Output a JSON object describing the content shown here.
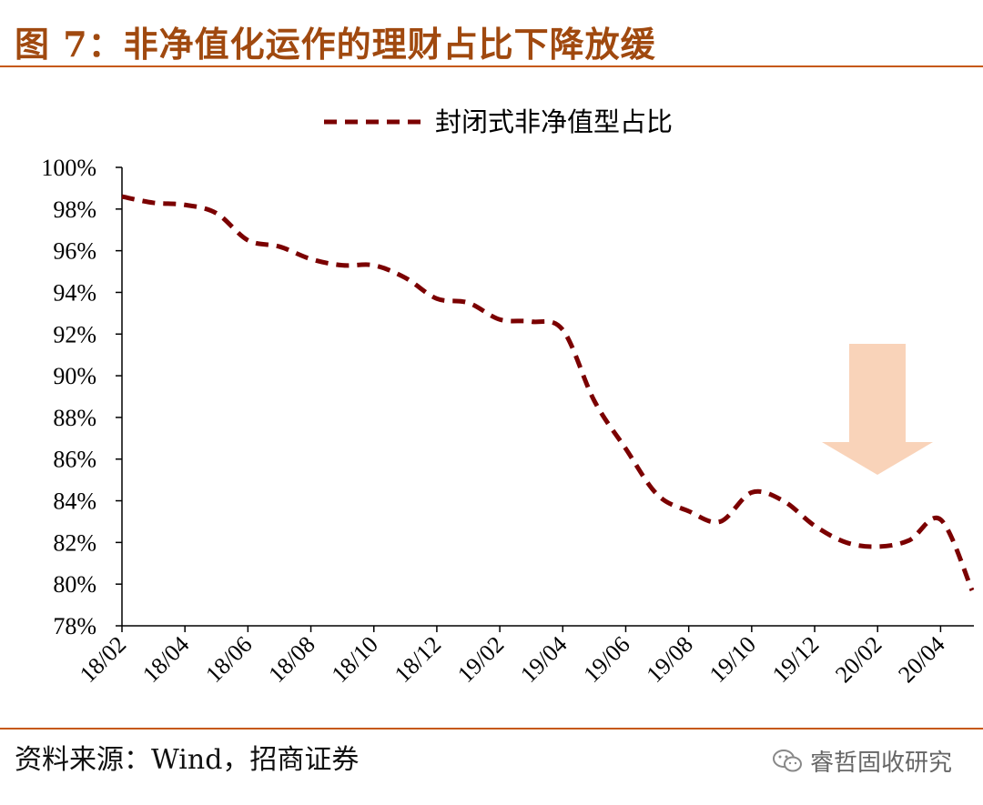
{
  "header": {
    "title": "图 7：非净值化运作的理财占比下降放缓"
  },
  "footer": {
    "source": "资料来源：Wind，招商证券",
    "watermark": "睿哲固收研究"
  },
  "colors": {
    "line": "#7b0000",
    "accent": "#c65911",
    "arrow": "#f8cbad"
  },
  "icons": {
    "watermark": "wechat-icon",
    "annotation": "down-arrow-icon"
  },
  "chart_data": {
    "type": "line",
    "legend": "top-center",
    "grid": false,
    "x": [
      "18/02",
      "18/03",
      "18/04",
      "18/05",
      "18/06",
      "18/07",
      "18/08",
      "18/09",
      "18/10",
      "18/11",
      "18/12",
      "19/01",
      "19/02",
      "19/03",
      "19/04",
      "19/05",
      "19/06",
      "19/07",
      "19/08",
      "19/09",
      "19/10",
      "19/11",
      "19/12",
      "20/01",
      "20/02",
      "20/03",
      "20/04",
      "20/05"
    ],
    "xticks": [
      "18/02",
      "18/04",
      "18/06",
      "18/08",
      "18/10",
      "18/12",
      "19/02",
      "19/04",
      "19/06",
      "19/08",
      "19/10",
      "19/12",
      "20/02",
      "20/04"
    ],
    "ylim": [
      78,
      100
    ],
    "yticks": [
      78,
      80,
      82,
      84,
      86,
      88,
      90,
      92,
      94,
      96,
      98,
      100
    ],
    "ytick_labels": [
      "78%",
      "80%",
      "82%",
      "84%",
      "86%",
      "88%",
      "90%",
      "92%",
      "94%",
      "96%",
      "98%",
      "100%"
    ],
    "series": [
      {
        "name": "封闭式非净值型占比",
        "values": [
          98.6,
          98.3,
          98.2,
          97.8,
          96.5,
          96.2,
          95.6,
          95.3,
          95.3,
          94.7,
          93.7,
          93.5,
          92.7,
          92.6,
          92.2,
          88.8,
          86.5,
          84.3,
          83.5,
          83.0,
          84.4,
          84.0,
          82.8,
          82.0,
          81.8,
          82.1,
          83.1,
          79.7
        ]
      }
    ]
  }
}
